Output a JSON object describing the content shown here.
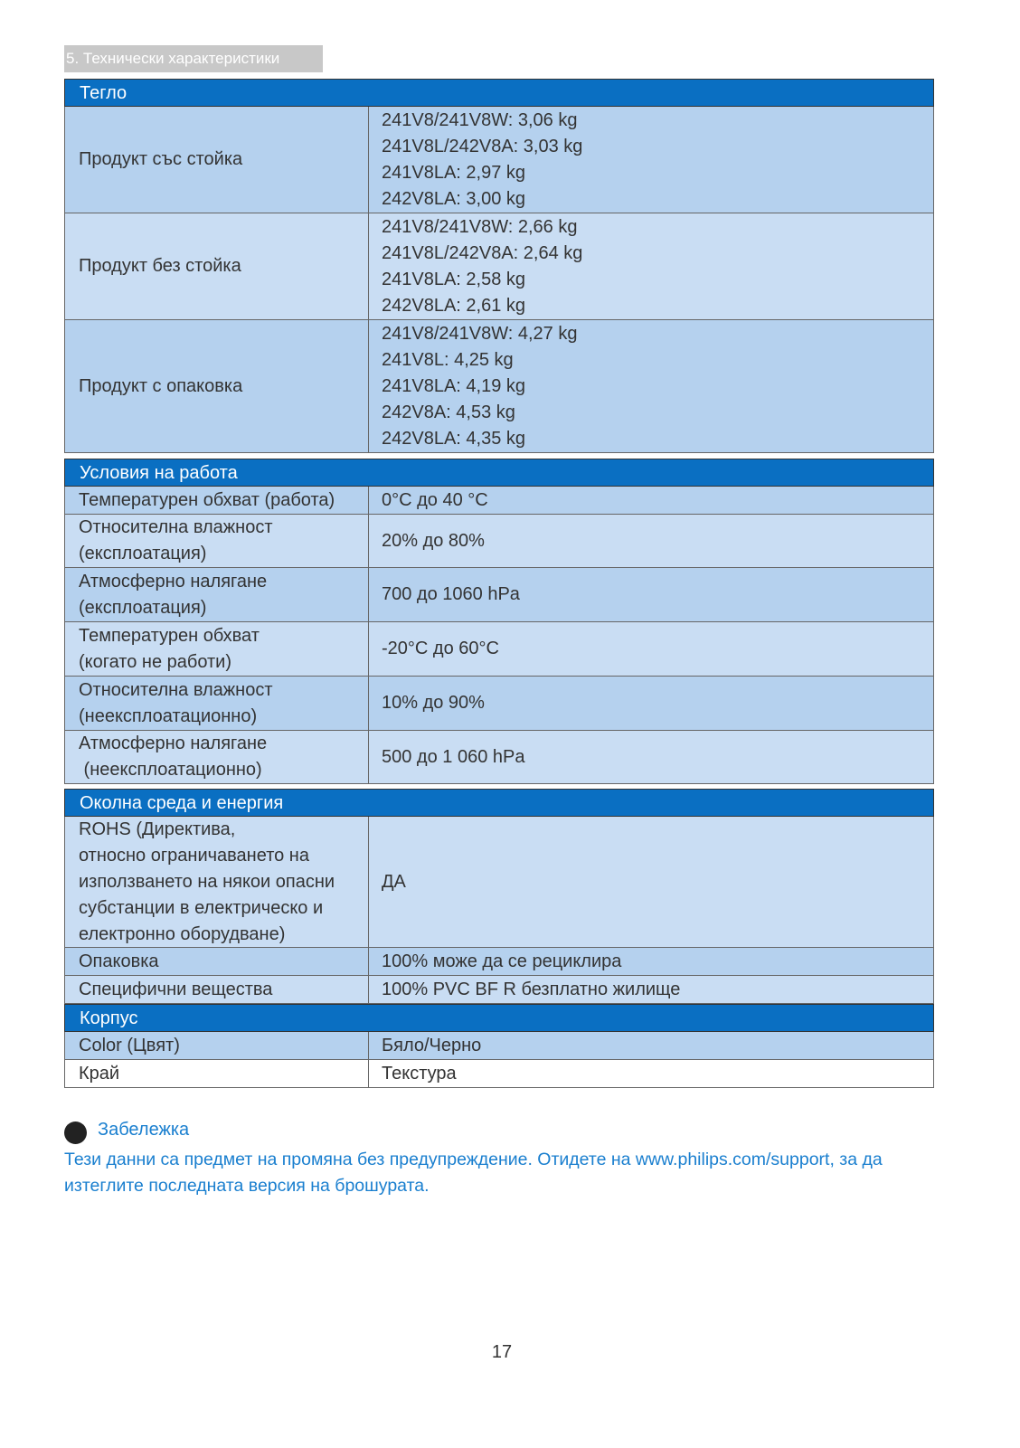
{
  "header": {
    "title": "5. Технически характеристики"
  },
  "sections": [
    {
      "title": "Тегло",
      "rows": [
        {
          "label": [
            "Продукт със стойка"
          ],
          "value": [
            "241V8/241V8W: 3,06 kg",
            "241V8L/242V8A: 3,03 kg",
            "241V8LA: 2,97 kg",
            "242V8LA: 3,00 kg"
          ]
        },
        {
          "label": [
            "Продукт без стойка"
          ],
          "value": [
            "241V8/241V8W: 2,66 kg",
            "241V8L/242V8A: 2,64 kg",
            "241V8LA: 2,58 kg",
            "242V8LA: 2,61 kg"
          ]
        },
        {
          "label": [
            "Продукт с опаковка"
          ],
          "value": [
            "241V8/241V8W: 4,27 kg",
            "241V8L: 4,25 kg",
            "241V8LA: 4,19 kg",
            "242V8A: 4,53 kg",
            "242V8LA: 4,35 kg"
          ]
        }
      ]
    },
    {
      "title": "Условия на работа",
      "rows": [
        {
          "label": [
            "Температурен обхват (работа)"
          ],
          "value": [
            "0°C до 40 °C"
          ]
        },
        {
          "label": [
            "Относителна влажност",
            "(експлоатация)"
          ],
          "value": [
            "20% до 80%"
          ]
        },
        {
          "label": [
            "Атмосферно налягане",
            "(експлоатация)"
          ],
          "value": [
            "700 до 1060 hPa"
          ]
        },
        {
          "label": [
            "Температурен обхват",
            "(когато не работи)"
          ],
          "value": [
            "-20°C до 60°C"
          ]
        },
        {
          "label": [
            "Относителна влажност",
            "(неексплоатационно)"
          ],
          "value": [
            "10% до 90%"
          ]
        },
        {
          "label": [
            "Атмосферно налягане",
            " (неексплоатационно)"
          ],
          "value": [
            "500 до 1 060 hPa"
          ]
        }
      ]
    },
    {
      "title": "Околна среда и енергия",
      "rows": [
        {
          "label": [
            "ROHS (Директива,",
            "относно ограничаването на",
            "използването на някои опасни",
            "субстанции в електрическо и",
            "електронно оборудване)"
          ],
          "value": [
            "ДА"
          ]
        },
        {
          "label": [
            "Опаковка"
          ],
          "value": [
            "100% може да се рециклира"
          ]
        },
        {
          "label": [
            "Специфични вещества"
          ],
          "value": [
            "100% PVC BF R безплатно жилище"
          ]
        }
      ]
    },
    {
      "title": "Корпус",
      "rows": [
        {
          "label": [
            "Color (Цвят)"
          ],
          "value": [
            "Бяло/Черно"
          ]
        },
        {
          "label": [
            "Край"
          ],
          "value": [
            "Текстура"
          ]
        }
      ]
    }
  ],
  "note": {
    "title": "Забележка",
    "text": "Тези данни са предмет на промяна без предупреждение. Отидете на www.philips.com/support, за да изтеглите последната версия на брошурата."
  },
  "page_number": "17"
}
